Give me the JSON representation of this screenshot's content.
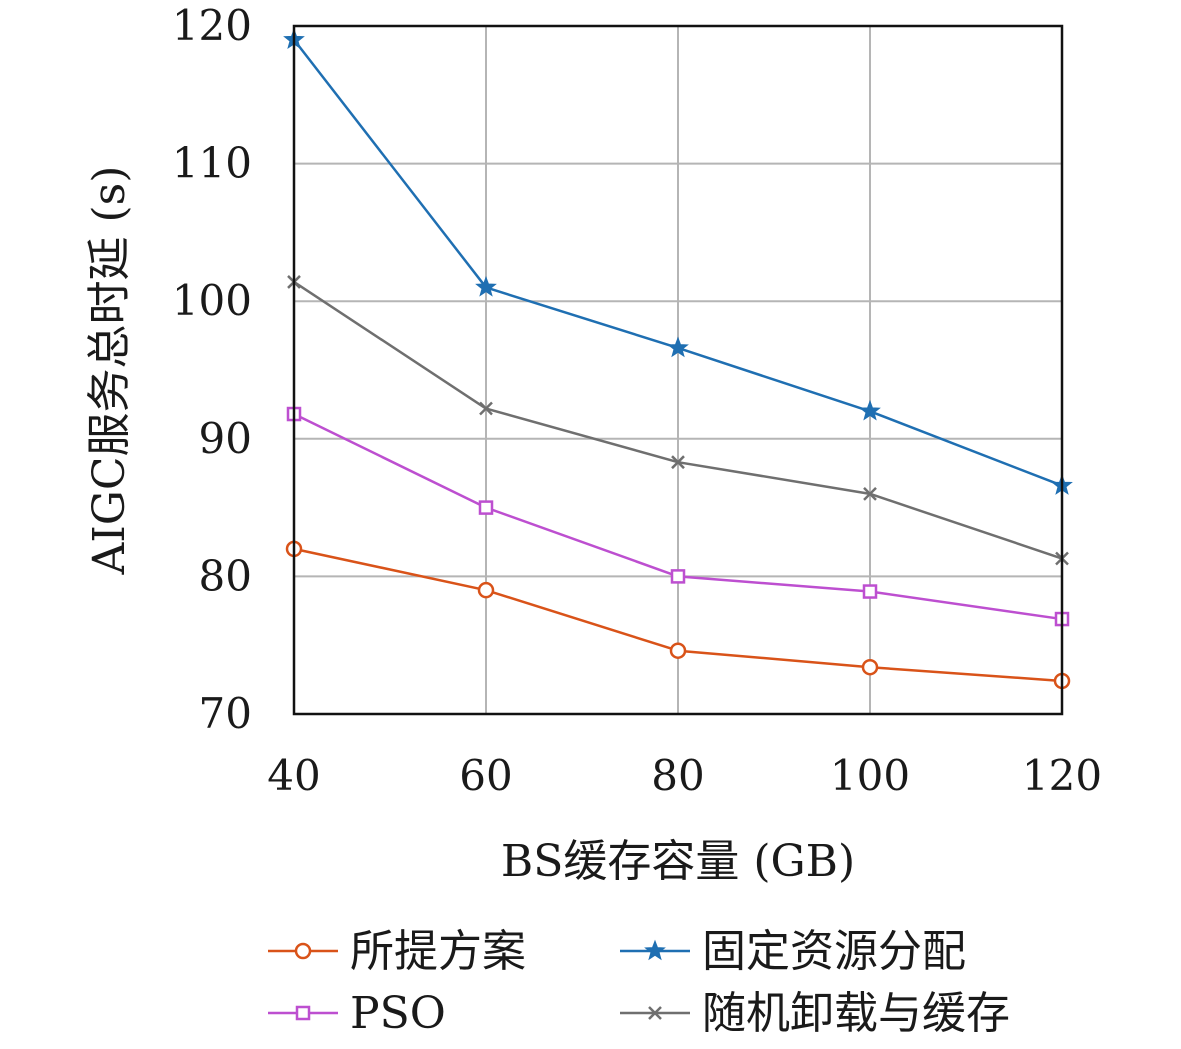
{
  "chart_data": {
    "type": "line",
    "title": "",
    "xlabel": "BS缓存容量 (GB)",
    "ylabel": "AIGC服务总时延 (s)",
    "x": [
      40,
      60,
      80,
      100,
      120
    ],
    "xlim": [
      40,
      120
    ],
    "ylim": [
      70,
      120
    ],
    "xticks": [
      "40",
      "60",
      "80",
      "100",
      "120"
    ],
    "yticks": [
      "70",
      "80",
      "90",
      "100",
      "110",
      "120"
    ],
    "grid": true,
    "legend_position": "bottom",
    "series": [
      {
        "name": "所提方案",
        "color": "#d95319",
        "marker": "circle",
        "values": [
          82.0,
          79.0,
          74.6,
          73.4,
          72.4
        ]
      },
      {
        "name": "固定资源分配",
        "color": "#1f6fb2",
        "marker": "star",
        "values": [
          119.0,
          101.0,
          96.6,
          92.0,
          86.6
        ]
      },
      {
        "name": "PSO",
        "color": "#bd4fd0",
        "marker": "square",
        "values": [
          91.8,
          85.0,
          80.0,
          78.9,
          76.9
        ]
      },
      {
        "name": "随机卸载与缓存",
        "color": "#6f6f6f",
        "marker": "x",
        "values": [
          101.4,
          92.2,
          88.3,
          86.0,
          81.3
        ]
      }
    ]
  }
}
